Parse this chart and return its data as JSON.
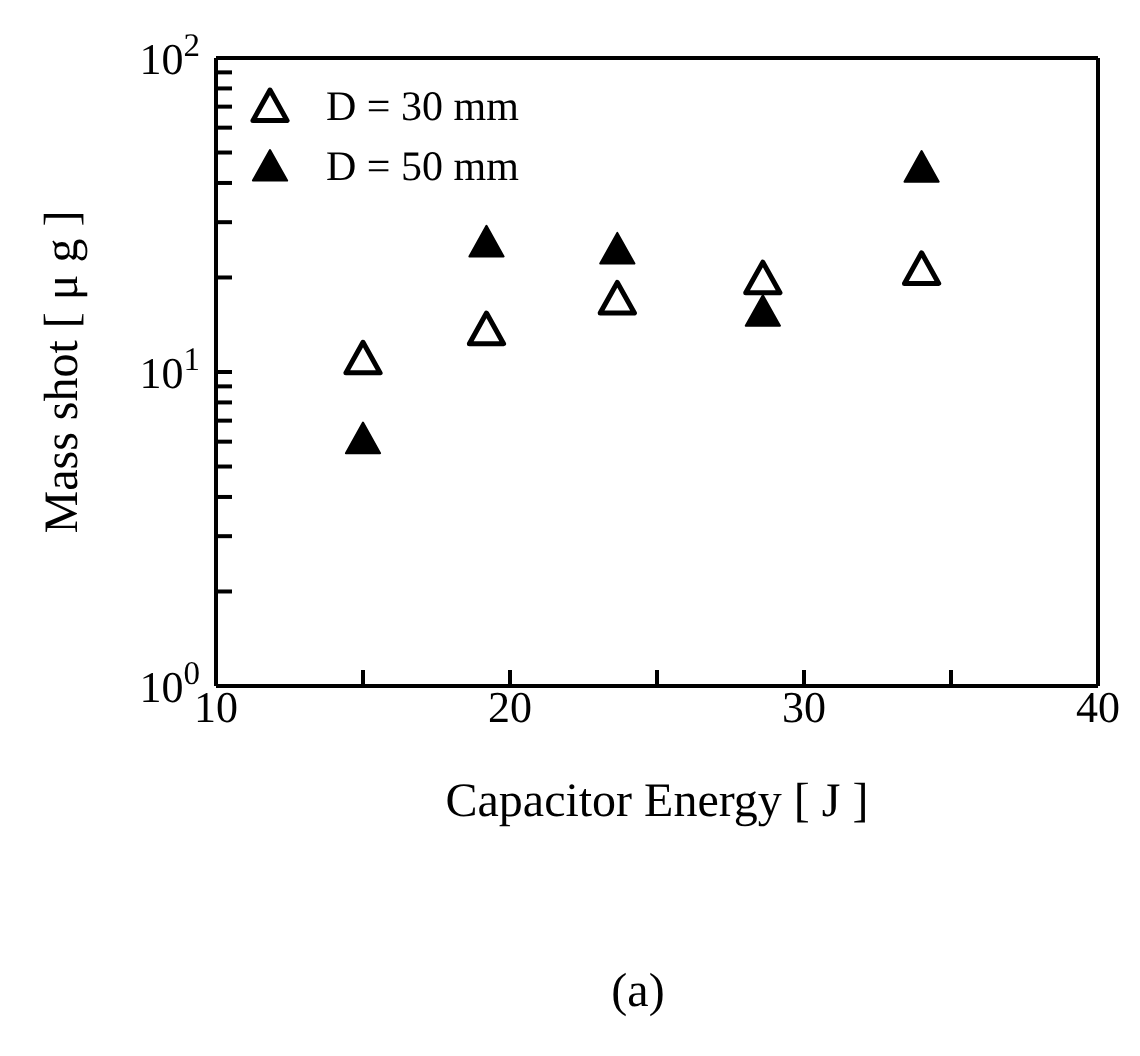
{
  "chart_data": {
    "type": "scatter",
    "xlabel": "Capacitor Energy [ J ]",
    "ylabel": "Mass shot [ μ g ]",
    "annotations": [
      "(a)"
    ],
    "x": [
      15.0,
      19.2,
      23.65,
      28.6,
      34.0
    ],
    "series": [
      {
        "name": "D = 30 mm",
        "color": "#000000",
        "marker": "triangle-open",
        "values": [
          10.9,
          13.5,
          16.9,
          19.6,
          21.0
        ]
      },
      {
        "name": "D = 50 mm",
        "color": "#000000",
        "values": [
          6.05,
          25.6,
          24.3,
          15.4,
          44.3
        ]
      }
    ],
    "xlim": [
      10,
      40
    ],
    "xticks": [
      10,
      {
        "value": 15,
        "label": null
      },
      20,
      {
        "value": 25,
        "label": null
      },
      30,
      {
        "value": 35,
        "label": null
      },
      40
    ],
    "ylim": [
      1,
      100
    ],
    "log": "y",
    "yticks": [
      {
        "value": 1,
        "label": "10$^{0}$"
      },
      {
        "value": 2,
        "label": null
      },
      {
        "value": 3,
        "label": null
      },
      {
        "value": 4,
        "label": null
      },
      {
        "value": 5,
        "label": null
      },
      {
        "value": 6,
        "label": null
      },
      {
        "value": 7,
        "label": null
      },
      {
        "value": 8,
        "label": null
      },
      {
        "value": 9,
        "label": null
      },
      {
        "value": 10,
        "label": "10$^{1}$"
      },
      {
        "value": 20,
        "label": null
      },
      {
        "value": 30,
        "label": null
      },
      {
        "value": 40,
        "label": null
      },
      {
        "value": 50,
        "label": null
      },
      {
        "value": 60,
        "label": null
      },
      {
        "value": 70,
        "label": null
      },
      {
        "value": 80,
        "label": null
      },
      {
        "value": 90,
        "label": null
      },
      {
        "value": 100,
        "label": "10$^{2}$"
      }
    ],
    "marker": "triangle",
    "legend": "top left"
  }
}
